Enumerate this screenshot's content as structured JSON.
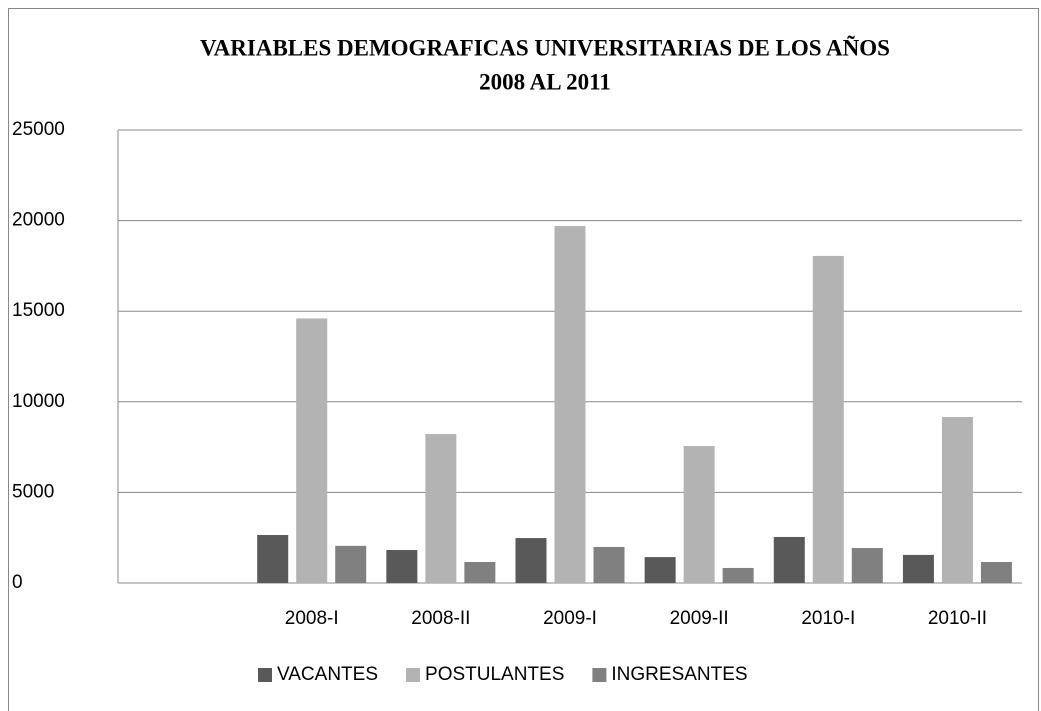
{
  "chart_data": {
    "type": "bar",
    "title": [
      "VARIABLES DEMOGRAFICAS UNIVERSITARIAS DE LOS AÑOS",
      "2008 AL 2011"
    ],
    "categories": [
      null,
      "2008-I",
      "2008-II",
      "2009-I",
      "2009-II",
      "2010-I",
      "2010-II"
    ],
    "series": [
      {
        "name": "VACANTES",
        "color": "#595959",
        "values": [
          null,
          2650,
          1820,
          2480,
          1430,
          2540,
          1550
        ]
      },
      {
        "name": "POSTULANTES",
        "color": "#b3b3b3",
        "values": [
          null,
          14600,
          8220,
          19700,
          7560,
          18050,
          9160
        ]
      },
      {
        "name": "INGRESANTES",
        "color": "#808080",
        "values": [
          null,
          2050,
          1160,
          1990,
          830,
          1930,
          1160
        ]
      }
    ],
    "ylim": [
      0,
      25000
    ],
    "yticks": [
      0,
      5000,
      10000,
      15000,
      20000,
      25000
    ],
    "grid": true,
    "legend": "bottom"
  }
}
